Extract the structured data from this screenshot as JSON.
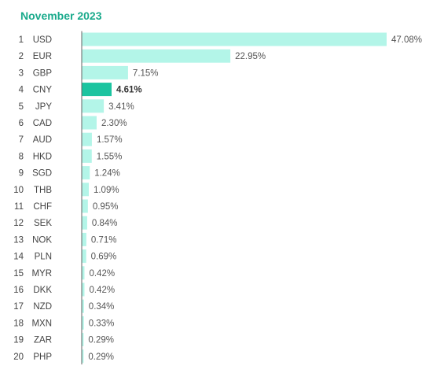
{
  "chart_data": {
    "type": "bar",
    "orientation": "horizontal",
    "title": "November 2023",
    "xlabel": "",
    "ylabel": "",
    "grid": false,
    "legend": "none",
    "xlim": [
      0,
      47.08
    ],
    "ranks": [
      "1",
      "2",
      "3",
      "4",
      "5",
      "6",
      "7",
      "8",
      "9",
      "10",
      "11",
      "12",
      "13",
      "14",
      "15",
      "16",
      "17",
      "18",
      "19",
      "20"
    ],
    "categories": [
      "USD",
      "EUR",
      "GBP",
      "CNY",
      "JPY",
      "CAD",
      "AUD",
      "HKD",
      "SGD",
      "THB",
      "CHF",
      "SEK",
      "NOK",
      "PLN",
      "MYR",
      "DKK",
      "NZD",
      "MXN",
      "ZAR",
      "PHP"
    ],
    "values": [
      47.08,
      22.95,
      7.15,
      4.61,
      3.41,
      2.3,
      1.57,
      1.55,
      1.24,
      1.09,
      0.95,
      0.84,
      0.71,
      0.69,
      0.42,
      0.42,
      0.34,
      0.33,
      0.29,
      0.29
    ],
    "value_labels": [
      "47.08%",
      "22.95%",
      "7.15%",
      "4.61%",
      "3.41%",
      "2.30%",
      "1.57%",
      "1.55%",
      "1.24%",
      "1.09%",
      "0.95%",
      "0.84%",
      "0.71%",
      "0.69%",
      "0.42%",
      "0.42%",
      "0.34%",
      "0.33%",
      "0.29%",
      "0.29%"
    ],
    "highlight": "CNY",
    "colors": {
      "title": "#1aaa8c",
      "bar": "#b3f5e8",
      "bar_highlight": "#1cc4a0",
      "axis": "#666666"
    }
  }
}
